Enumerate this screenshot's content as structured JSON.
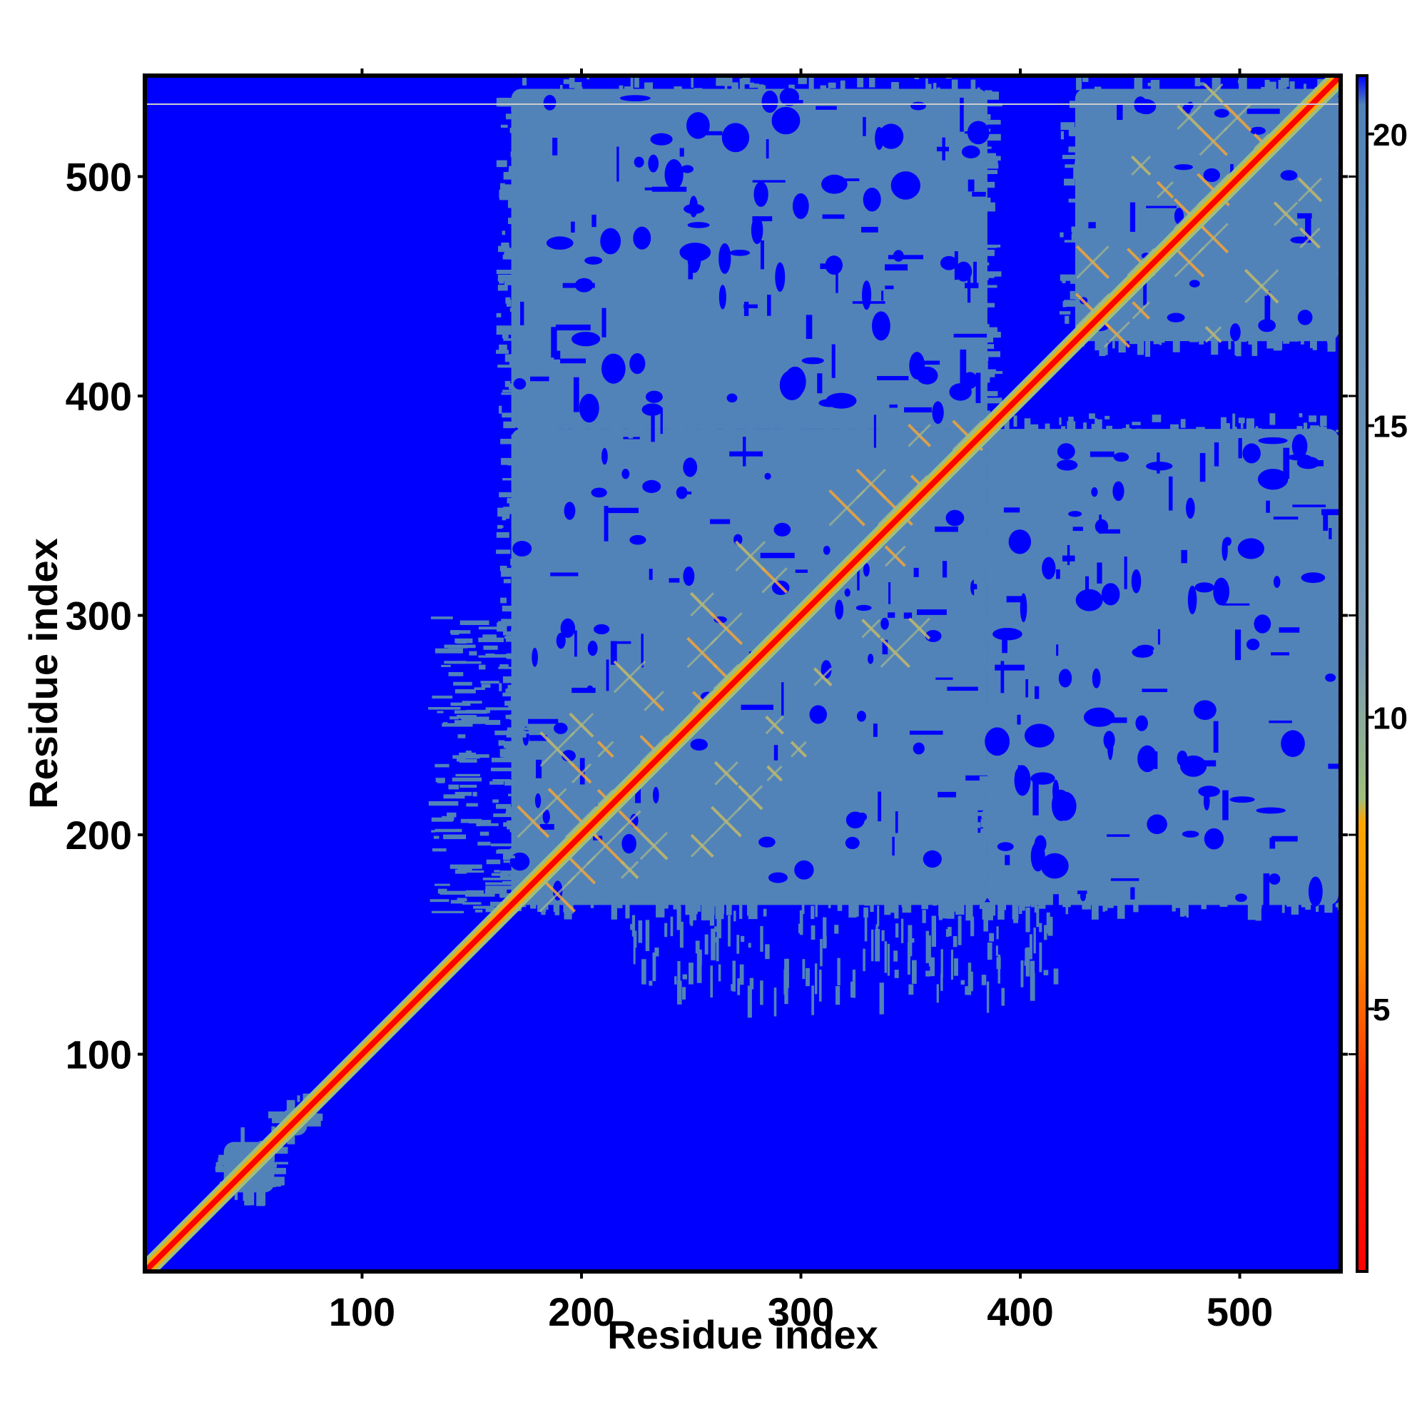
{
  "chart_data": {
    "type": "heatmap",
    "title": "",
    "xlabel": "Residue index",
    "ylabel": "Residue index",
    "xlim": [
      1,
      546
    ],
    "ylim": [
      1,
      546
    ],
    "x_ticks": [
      100,
      200,
      300,
      400,
      500
    ],
    "y_ticks": [
      100,
      200,
      300,
      400,
      500
    ],
    "colorbar": {
      "ticks": [
        5,
        10,
        15,
        20
      ],
      "range": [
        0.5,
        21
      ],
      "stops": [
        {
          "value": 0.5,
          "color": "#ff0000"
        },
        {
          "value": 3.5,
          "color": "#ff2a00"
        },
        {
          "value": 6.0,
          "color": "#ff8c00"
        },
        {
          "value": 8.2,
          "color": "#ffa500"
        },
        {
          "value": 8.6,
          "color": "#9fbf7c"
        },
        {
          "value": 11.0,
          "color": "#7a9bb3"
        },
        {
          "value": 20.5,
          "color": "#5183b8"
        },
        {
          "value": 21.0,
          "color": "#0000ff"
        }
      ]
    },
    "background_color": "#0000ff",
    "contact_color": "#5183b8",
    "diagonal_color": "#ff0000",
    "near_color": "#ffa500",
    "regions": [
      {
        "x": [
          168,
          385
        ],
        "y": [
          168,
          385
        ],
        "kind": "domain"
      },
      {
        "x": [
          168,
          385
        ],
        "y": [
          385,
          540
        ],
        "kind": "inter"
      },
      {
        "x": [
          385,
          545
        ],
        "y": [
          168,
          385
        ],
        "kind": "inter"
      },
      {
        "x": [
          425,
          545
        ],
        "y": [
          425,
          540
        ],
        "kind": "domain"
      },
      {
        "x": [
          130,
          168
        ],
        "y": [
          165,
          300
        ],
        "kind": "sparse"
      },
      {
        "x": [
          220,
          420
        ],
        "y": [
          130,
          168
        ],
        "kind": "sparse"
      },
      {
        "x": [
          37,
          60
        ],
        "y": [
          37,
          60
        ],
        "kind": "small"
      },
      {
        "x": [
          63,
          75
        ],
        "y": [
          63,
          75
        ],
        "kind": "small"
      }
    ],
    "horizontal_line": {
      "y": 533,
      "color": "#cccccc"
    }
  },
  "axes": {
    "x_tick_labels": [
      "100",
      "200",
      "300",
      "400",
      "500"
    ],
    "y_tick_labels": [
      "100",
      "200",
      "300",
      "400",
      "500"
    ],
    "colorbar_tick_labels": [
      "5",
      "10",
      "15",
      "20"
    ],
    "x_title": "Residue index",
    "y_title": "Residue index"
  }
}
